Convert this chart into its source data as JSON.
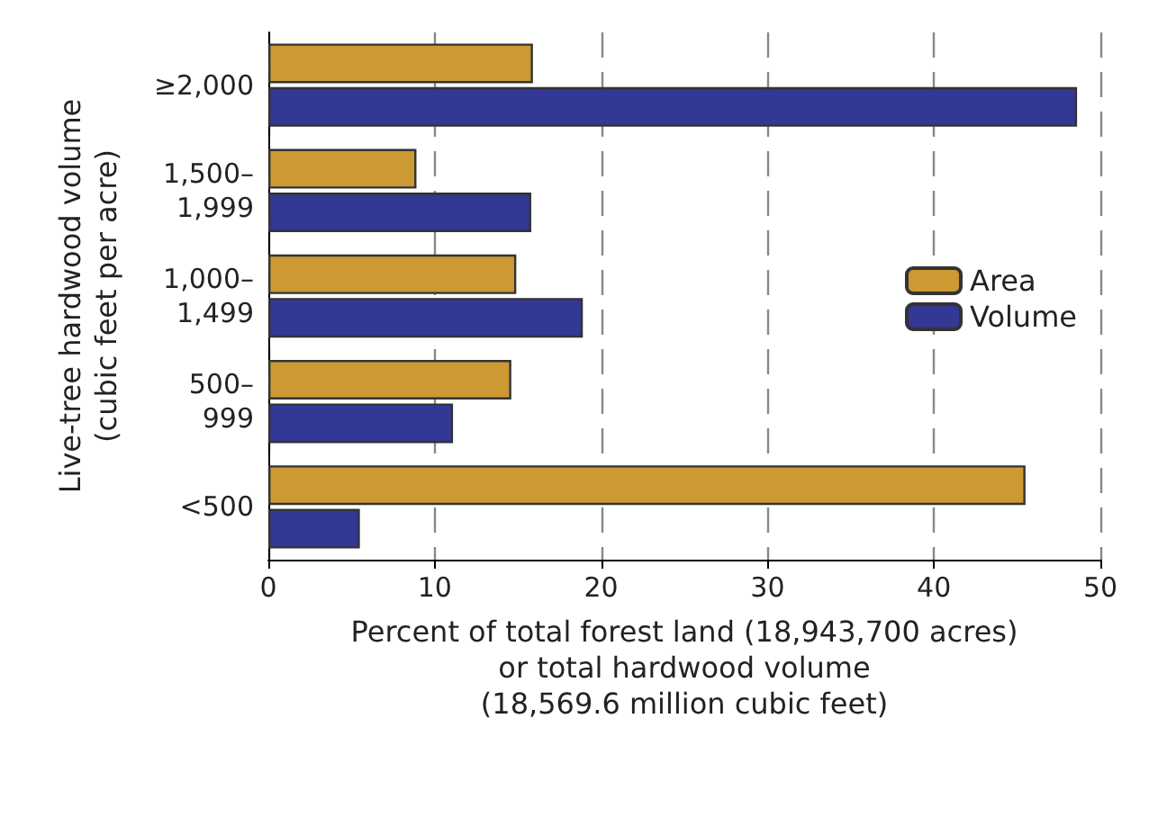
{
  "chart_data": {
    "type": "bar",
    "orientation": "horizontal",
    "categories": [
      "≥2,000",
      "1,500–\n1,999",
      "1,000–\n1,499",
      "500–\n999",
      "<500"
    ],
    "series": [
      {
        "name": "Area",
        "color": "#cc9933",
        "values": [
          15.9,
          8.9,
          14.9,
          14.6,
          45.5
        ]
      },
      {
        "name": "Volume",
        "color": "#333894",
        "values": [
          48.6,
          15.8,
          18.9,
          11.1,
          5.5
        ]
      }
    ],
    "xlim": [
      0,
      50
    ],
    "xticks": [
      0,
      10,
      20,
      30,
      40,
      50
    ],
    "xlabel": "Percent of total forest land (18,943,700 acres)\nor total hardwood volume\n(18,569.6 million cubic feet)",
    "ylabel": "Live-tree hardwood volume\n(cubic feet per acre)",
    "grid": "x",
    "legend": "right"
  }
}
